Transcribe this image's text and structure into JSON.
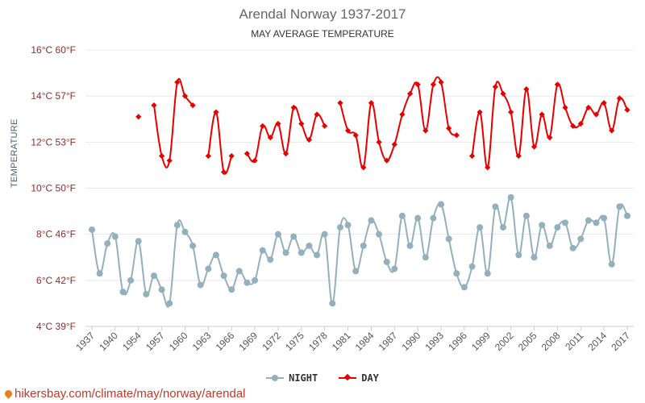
{
  "chart_data": {
    "type": "line",
    "title": "Arendal Norway 1937-2017",
    "subtitle": "MAY AVERAGE TEMPERATURE",
    "ylabel": "TEMPERATURE",
    "ylim": [
      4,
      16
    ],
    "y_ticks": [
      {
        "value": 16,
        "label": "16°C 60°F"
      },
      {
        "value": 14,
        "label": "14°C 57°F"
      },
      {
        "value": 12,
        "label": "12°C 53°F"
      },
      {
        "value": 10,
        "label": "10°C 50°F"
      },
      {
        "value": 8,
        "label": "8°C 46°F"
      },
      {
        "value": 6,
        "label": "6°C 42°F"
      },
      {
        "value": 4,
        "label": "4°C 39°F"
      }
    ],
    "x_tick_labels": [
      "1937",
      "1940",
      "1954",
      "1957",
      "1960",
      "1963",
      "1966",
      "1969",
      "1972",
      "1975",
      "1978",
      "1981",
      "1984",
      "1987",
      "1990",
      "1993",
      "1996",
      "1999",
      "2002",
      "2005",
      "2008",
      "2011",
      "2014",
      "2017"
    ],
    "x_tick_index": [
      0,
      3,
      6,
      9,
      12,
      15,
      18,
      21,
      24,
      27,
      30,
      33,
      36,
      39,
      42,
      45,
      48,
      51,
      54,
      57,
      60,
      63,
      66,
      69
    ],
    "point_count": 70,
    "series": [
      {
        "name": "NIGHT",
        "color": "#93b1bc",
        "marker": "circle",
        "values": [
          8.2,
          6.3,
          7.6,
          7.9,
          5.5,
          6.0,
          7.7,
          5.4,
          6.2,
          5.6,
          5.0,
          8.4,
          8.1,
          7.5,
          5.8,
          6.5,
          7.1,
          6.2,
          5.6,
          6.4,
          5.9,
          6.0,
          7.3,
          6.9,
          8.0,
          7.2,
          7.9,
          7.2,
          7.5,
          7.1,
          8.0,
          5.0,
          8.3,
          8.4,
          6.4,
          7.5,
          8.6,
          8.0,
          6.8,
          6.5,
          8.8,
          7.5,
          8.7,
          7.0,
          8.7,
          9.3,
          7.8,
          6.3,
          5.7,
          6.6,
          8.3,
          6.3,
          9.2,
          8.3,
          9.6,
          7.1,
          8.8,
          7.0,
          8.4,
          7.5,
          8.3,
          8.5,
          7.4,
          7.8,
          8.6,
          8.5,
          8.7,
          6.7,
          9.2,
          8.8
        ]
      },
      {
        "name": "DAY",
        "color": "#e60000",
        "marker": "diamond",
        "values": [
          null,
          null,
          null,
          null,
          null,
          null,
          13.1,
          null,
          13.6,
          11.4,
          11.2,
          14.6,
          14.0,
          13.6,
          null,
          11.4,
          13.3,
          10.7,
          11.4,
          null,
          11.5,
          11.2,
          12.7,
          12.2,
          12.8,
          11.5,
          13.5,
          12.8,
          12.1,
          13.2,
          12.7,
          null,
          13.7,
          12.5,
          12.3,
          10.9,
          13.7,
          12.0,
          11.2,
          11.9,
          13.2,
          14.1,
          14.5,
          12.5,
          14.5,
          14.6,
          12.6,
          12.3,
          null,
          11.4,
          13.3,
          10.9,
          14.4,
          14.1,
          13.3,
          11.4,
          14.3,
          11.8,
          13.2,
          12.2,
          14.5,
          13.5,
          12.7,
          12.8,
          13.5,
          13.2,
          13.7,
          12.5,
          13.9,
          13.4
        ]
      }
    ],
    "grid": true,
    "legend_position": "bottom-center"
  },
  "legend": {
    "night_label": "NIGHT",
    "day_label": "DAY"
  },
  "watermark": {
    "text": "hikersbay.com/climate/may/norway/arendal",
    "icon": "location-pin-icon"
  }
}
